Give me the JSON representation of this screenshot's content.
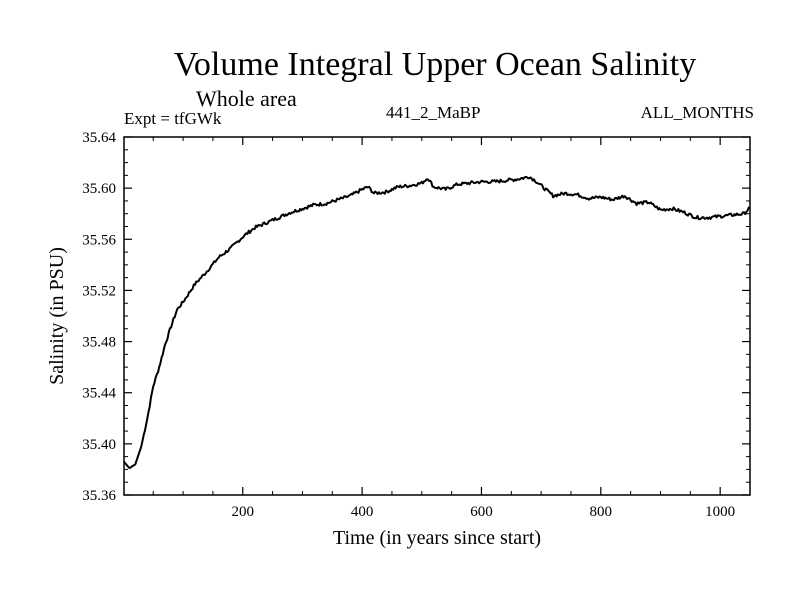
{
  "chart_data": {
    "type": "line",
    "title": "Volume Integral Upper Ocean Salinity",
    "subtitle": "Whole area",
    "expt_label": "Expt = tfGWk",
    "run_label": "441_2_MaBP",
    "months_label": "ALL_MONTHS",
    "xlabel": "Time (in years since start)",
    "ylabel": "Salinity (in PSU)",
    "xlim": [
      1,
      1050
    ],
    "ylim": [
      35.36,
      35.64
    ],
    "xticks": [
      200,
      400,
      600,
      800,
      1000
    ],
    "xtick_labels": [
      "200",
      "400",
      "600",
      "800",
      "1000"
    ],
    "yticks": [
      35.36,
      35.4,
      35.44,
      35.48,
      35.52,
      35.56,
      35.6,
      35.64
    ],
    "ytick_labels": [
      "35.36",
      "35.40",
      "35.44",
      "35.48",
      "35.52",
      "35.56",
      "35.60",
      "35.64"
    ],
    "series": [
      {
        "name": "salinity",
        "color": "#000000",
        "x": [
          1,
          10,
          20,
          30,
          40,
          50,
          60,
          70,
          80,
          90,
          100,
          120,
          140,
          160,
          180,
          200,
          220,
          240,
          260,
          280,
          300,
          320,
          340,
          360,
          380,
          400,
          410,
          420,
          440,
          460,
          480,
          500,
          510,
          520,
          540,
          560,
          580,
          600,
          620,
          640,
          660,
          680,
          690,
          700,
          720,
          740,
          760,
          780,
          800,
          820,
          840,
          860,
          880,
          900,
          920,
          940,
          960,
          980,
          1000,
          1020,
          1040,
          1050
        ],
        "y": [
          35.386,
          35.381,
          35.384,
          35.398,
          35.42,
          35.445,
          35.46,
          35.478,
          35.492,
          35.505,
          35.511,
          35.525,
          35.535,
          35.546,
          35.553,
          35.562,
          35.569,
          35.573,
          35.577,
          35.581,
          35.584,
          35.587,
          35.588,
          35.591,
          35.594,
          35.599,
          35.601,
          35.596,
          35.597,
          35.601,
          35.602,
          35.604,
          35.608,
          35.601,
          35.599,
          35.603,
          35.604,
          35.605,
          35.605,
          35.606,
          35.607,
          35.609,
          35.606,
          35.602,
          35.594,
          35.596,
          35.595,
          35.592,
          35.593,
          35.591,
          35.594,
          35.588,
          35.589,
          35.583,
          35.584,
          35.581,
          35.577,
          35.577,
          35.578,
          35.579,
          35.58,
          35.585
        ]
      }
    ]
  }
}
